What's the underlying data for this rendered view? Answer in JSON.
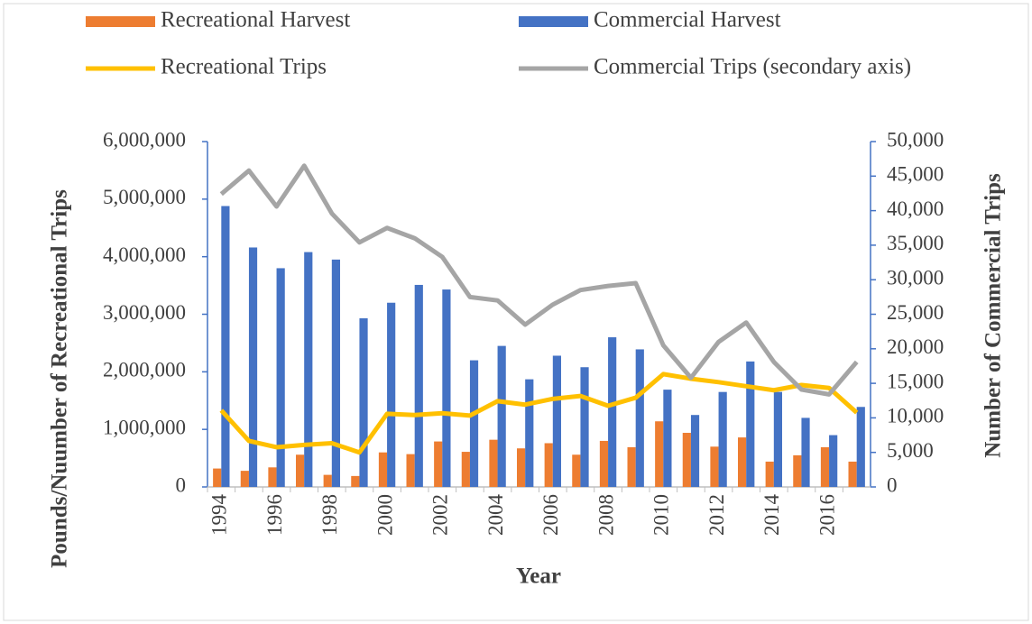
{
  "chart_data": {
    "type": "bar",
    "xlabel": "Year",
    "ylabel": "Pounds/Nuumber of Recreational Trips",
    "y2label": "Number of Commercial Trips",
    "categories": [
      "1994",
      null,
      "1996",
      null,
      "1998",
      null,
      "2000",
      null,
      "2002",
      null,
      "2004",
      null,
      "2006",
      null,
      "2008",
      null,
      "2010",
      null,
      "2012",
      null,
      "2014",
      null,
      "2016",
      null
    ],
    "ylim": [
      0,
      6000000
    ],
    "yticks": [
      0,
      {
        "value": 1000000,
        "label": "1,000,000"
      },
      {
        "value": 2000000,
        "label": "2,000,000"
      },
      {
        "value": 3000000,
        "label": "3,000,000"
      },
      {
        "value": 4000000,
        "label": "4,000,000"
      },
      {
        "value": 5000000,
        "label": "5,000,000"
      },
      {
        "value": 6000000,
        "label": "6,000,000"
      }
    ],
    "y2lim": [
      0,
      50000
    ],
    "y2ticks": [
      0,
      {
        "value": 5000,
        "label": "5,000"
      },
      {
        "value": 10000,
        "label": "10,000"
      },
      {
        "value": 15000,
        "label": "15,000"
      },
      {
        "value": 20000,
        "label": "20,000"
      },
      {
        "value": 25000,
        "label": "25,000"
      },
      {
        "value": 30000,
        "label": "30,000"
      },
      {
        "value": 35000,
        "label": "35,000"
      },
      {
        "value": 40000,
        "label": "40,000"
      },
      {
        "value": 45000,
        "label": "45,000"
      },
      {
        "value": 50000,
        "label": "50,000"
      }
    ],
    "series": [
      {
        "name": "Recreational Harvest",
        "type": "bar",
        "color": "#ED7D31",
        "values": [
          320000,
          280000,
          340000,
          560000,
          210000,
          190000,
          600000,
          570000,
          790000,
          610000,
          820000,
          670000,
          760000,
          560000,
          800000,
          690000,
          1140000,
          940000,
          700000,
          860000,
          440000,
          550000,
          690000,
          440000
        ]
      },
      {
        "name": "Commercial Harvest",
        "type": "bar",
        "color": "#4472C4",
        "values": [
          4880000,
          4160000,
          3800000,
          4080000,
          3950000,
          2930000,
          3200000,
          3510000,
          3430000,
          2200000,
          2450000,
          1870000,
          2280000,
          2080000,
          2600000,
          2390000,
          1690000,
          1250000,
          1650000,
          2180000,
          1650000,
          1200000,
          900000,
          1390000
        ]
      },
      {
        "name": "Recreational Trips",
        "type": "line",
        "color": "#FFC000",
        "values": [
          1330000,
          800000,
          690000,
          730000,
          760000,
          600000,
          1270000,
          1250000,
          1280000,
          1240000,
          1490000,
          1430000,
          1530000,
          1580000,
          1410000,
          1550000,
          1960000,
          1880000,
          1820000,
          1750000,
          1680000,
          1770000,
          1720000,
          1290000
        ]
      },
      {
        "name": "Commercial Trips (secondary axis)",
        "type": "line",
        "axis": "y2",
        "color": "#A5A5A5",
        "values": [
          42400,
          45800,
          40600,
          46500,
          39600,
          35400,
          37500,
          36000,
          33300,
          27500,
          27000,
          23500,
          26400,
          28500,
          29100,
          29500,
          20500,
          15800,
          21000,
          23800,
          18100,
          14100,
          13400,
          18100
        ]
      }
    ]
  }
}
